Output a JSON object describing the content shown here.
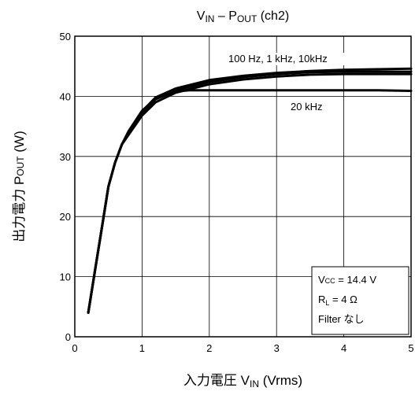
{
  "chart_data": {
    "type": "line",
    "title": {
      "parts": [
        {
          "t": "V"
        },
        {
          "t": "IN",
          "sub": true
        },
        {
          "t": " – P"
        },
        {
          "t": "OUT",
          "sub": true
        },
        {
          "t": " (ch2)"
        }
      ]
    },
    "xlabel": {
      "parts": [
        {
          "t": "入力電圧   V"
        },
        {
          "t": "IN",
          "sub": true
        },
        {
          "t": "   (Vrms)"
        }
      ]
    },
    "ylabel": {
      "parts": [
        {
          "t": "出力電力   P"
        },
        {
          "t": "OUT",
          "small": true
        },
        {
          "t": "   (W)"
        }
      ]
    },
    "xlim": [
      0,
      5
    ],
    "ylim": [
      0,
      50
    ],
    "xticks": [
      0,
      1,
      2,
      3,
      4,
      5
    ],
    "yticks": [
      0,
      10,
      20,
      30,
      40,
      50
    ],
    "grid": true,
    "series": [
      {
        "name": "100 Hz",
        "x": [
          0.2,
          0.3,
          0.4,
          0.5,
          0.6,
          0.7,
          0.8,
          1.0,
          1.2,
          1.5,
          2.0,
          2.5,
          3.0,
          3.5,
          4.0,
          4.5,
          5.0
        ],
        "y": [
          4,
          11,
          18,
          25,
          29,
          32,
          34,
          37.5,
          39.8,
          41.3,
          42.7,
          43.4,
          43.9,
          44.2,
          44.4,
          44.5,
          44.6
        ]
      },
      {
        "name": "1 kHz",
        "x": [
          0.2,
          0.3,
          0.4,
          0.5,
          0.6,
          0.7,
          0.8,
          1.0,
          1.2,
          1.5,
          2.0,
          2.5,
          3.0,
          3.5,
          4.0,
          4.5,
          5.0
        ],
        "y": [
          4,
          11,
          18,
          25,
          29,
          32,
          33.8,
          37.2,
          39.5,
          41.0,
          42.4,
          43.2,
          43.7,
          44.0,
          44.1,
          44.1,
          44.1
        ]
      },
      {
        "name": "10kHz",
        "x": [
          0.2,
          0.3,
          0.4,
          0.5,
          0.6,
          0.7,
          0.8,
          1.0,
          1.2,
          1.5,
          2.0,
          2.5,
          3.0,
          3.5,
          4.0,
          4.5,
          5.0
        ],
        "y": [
          4,
          11,
          18,
          25,
          29,
          32,
          33.6,
          36.8,
          39.0,
          40.6,
          42.0,
          42.8,
          43.3,
          43.6,
          43.7,
          43.7,
          43.7
        ]
      },
      {
        "name": "20 kHz",
        "x": [
          0.2,
          0.3,
          0.4,
          0.5,
          0.6,
          0.7,
          0.8,
          1.0,
          1.2,
          1.5,
          1.7,
          2.0,
          2.5,
          3.0,
          3.5,
          4.0,
          4.5,
          5.0
        ],
        "y": [
          4,
          11,
          18,
          25,
          29,
          32,
          34.2,
          37.6,
          39.6,
          40.8,
          41.0,
          41.0,
          41.0,
          41.0,
          41.0,
          41.0,
          41.0,
          40.9
        ]
      }
    ],
    "annotations": {
      "group_label": "100 Hz, 1 kHz, 10kHz",
      "single_label": "20 kHz"
    },
    "conditions": [
      {
        "parts": [
          {
            "t": "V"
          },
          {
            "t": "CC",
            "small": true
          },
          {
            "t": " = 14.4 V"
          }
        ]
      },
      {
        "parts": [
          {
            "t": "R"
          },
          {
            "t": "L",
            "sub": true
          },
          {
            "t": " = 4 Ω"
          }
        ]
      },
      {
        "parts": [
          {
            "t": "Filter なし"
          }
        ]
      }
    ]
  }
}
